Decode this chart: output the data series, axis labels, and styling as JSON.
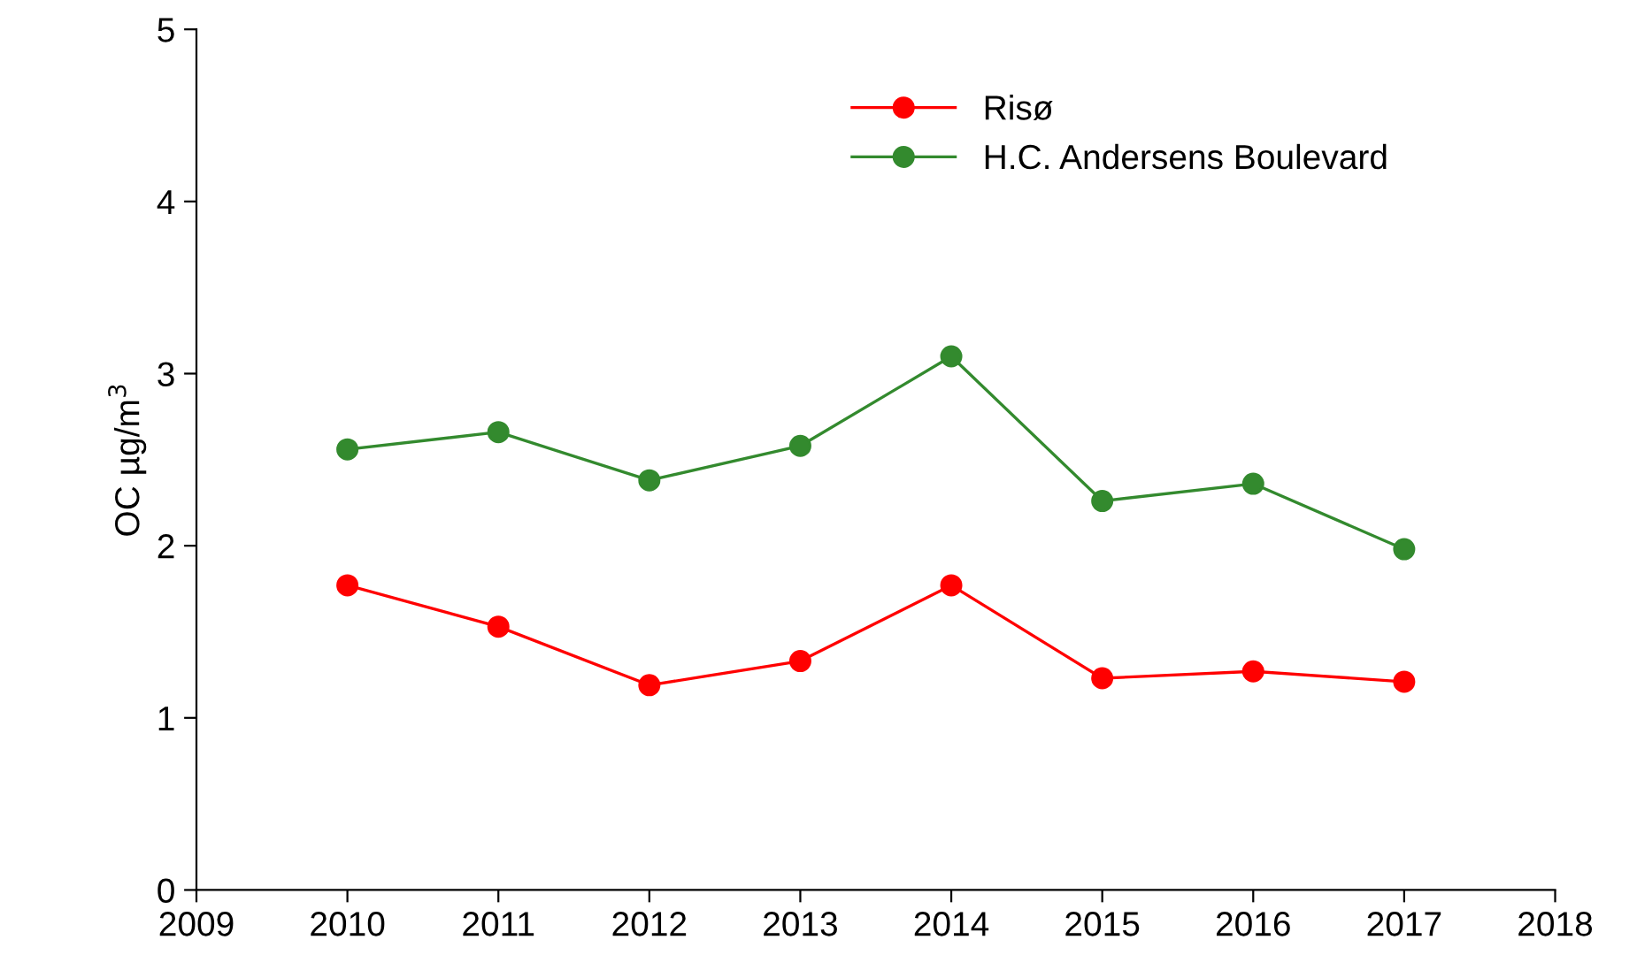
{
  "chart_data": {
    "type": "line",
    "ylabel": "OC µg/m$^{3}$",
    "x": [
      2010,
      2011,
      2012,
      2013,
      2014,
      2015,
      2016,
      2017
    ],
    "series": [
      {
        "name": "Risø",
        "color": "#ff0000",
        "values": [
          1.77,
          1.53,
          1.19,
          1.33,
          1.77,
          1.23,
          1.27,
          1.21
        ]
      },
      {
        "name": "H.C. Andersens Boulevard",
        "color": "#338a2e",
        "values": [
          2.56,
          2.66,
          2.38,
          2.58,
          3.1,
          2.26,
          2.36,
          1.98
        ]
      }
    ],
    "xlim": [
      2009,
      2018
    ],
    "xticks": [
      2009,
      2010,
      2011,
      2012,
      2013,
      2014,
      2015,
      2016,
      2017,
      2018
    ],
    "ylim": [
      0,
      5
    ],
    "yticks": [
      0,
      1,
      2,
      3,
      4,
      5
    ],
    "grid": false,
    "legend": "top right",
    "marker": "circle",
    "line_style": "solid"
  }
}
